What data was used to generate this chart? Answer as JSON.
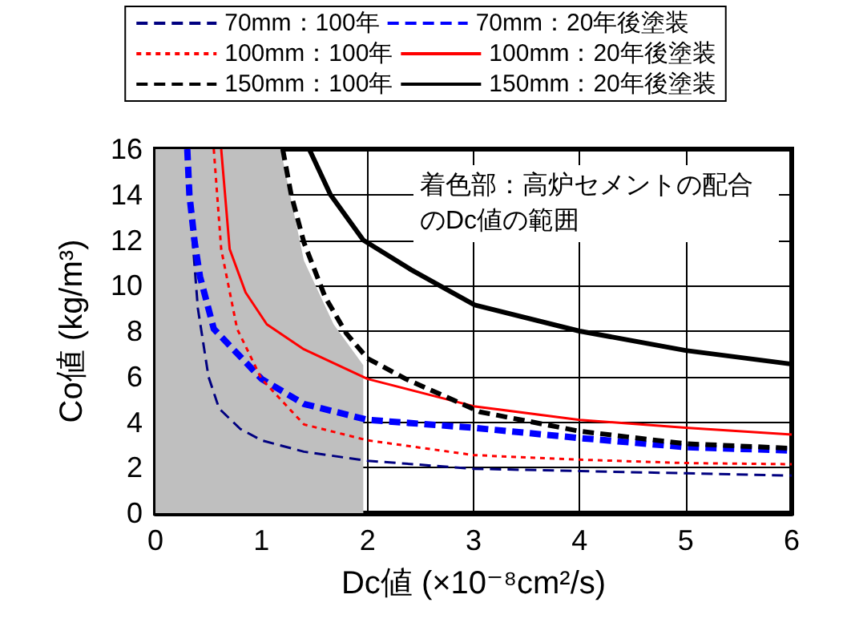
{
  "chart_data": {
    "type": "line",
    "xlabel": "Dc値 (×10⁻⁸cm²/s)",
    "ylabel": "Co値 (kg/m³)",
    "xlim": [
      0,
      6
    ],
    "xticks": [
      0,
      1,
      2,
      3,
      4,
      5,
      6
    ],
    "ylim": [
      0,
      16
    ],
    "yticks": [
      0,
      2,
      4,
      6,
      8,
      10,
      12,
      14,
      16
    ],
    "grid": true,
    "legend": "top",
    "marker": "none",
    "annotations": [
      "着色部：高炉セメントの配合のDc値の範囲"
    ],
    "series": [
      {
        "type": "area",
        "color": "#bfbfbf",
        "x": [
          0,
          1.18,
          1.4,
          1.68,
          1.96,
          1.96
        ],
        "values": [
          16,
          16,
          11.1,
          8.3,
          6.5,
          0
        ]
      },
      {
        "name": "70mm：100年",
        "color": "#000080",
        "line_style": "dashed",
        "x": [
          0.3,
          0.35,
          0.4,
          0.5,
          0.6,
          0.8,
          1.0,
          1.4,
          2,
          3,
          4,
          5,
          6
        ],
        "values": [
          16,
          12,
          9,
          6,
          4.6,
          3.7,
          3.2,
          2.7,
          2.3,
          1.95,
          1.85,
          1.75,
          1.65
        ]
      },
      {
        "name": "70mm：20年後塗装",
        "color": "#0000ff",
        "line_style": "dashed",
        "x": [
          0.3,
          0.32,
          0.37,
          0.42,
          0.55,
          1.0,
          1.4,
          2,
          3,
          4,
          5,
          6
        ],
        "values": [
          16,
          14,
          11.9,
          10.4,
          8.1,
          5.9,
          4.8,
          4.1,
          3.75,
          3.3,
          2.9,
          2.75
        ]
      },
      {
        "name": "100mm：100年",
        "color": "#ff0000",
        "line_style": "dotted",
        "x": [
          0.55,
          0.62,
          0.77,
          1.0,
          1.4,
          2,
          3,
          4,
          5,
          6
        ],
        "values": [
          16,
          11.6,
          8.1,
          5.9,
          3.9,
          3.2,
          2.55,
          2.35,
          2.2,
          2.15
        ]
      },
      {
        "name": "100mm：20年後塗装",
        "color": "#ff0000",
        "line_style": "solid",
        "x": [
          0.62,
          0.7,
          0.85,
          1.05,
          1.4,
          2,
          3,
          4,
          5,
          6
        ],
        "values": [
          16,
          11.6,
          9.7,
          8.3,
          7.2,
          5.9,
          4.7,
          4.1,
          3.75,
          3.45
        ]
      },
      {
        "name": "150mm：100年",
        "color": "#000000",
        "line_style": "dashed",
        "x": [
          1.2,
          1.28,
          1.4,
          1.6,
          1.8,
          2,
          2.36,
          3.06,
          4,
          5,
          6
        ],
        "values": [
          16,
          14,
          11.9,
          9.5,
          7.9,
          6.8,
          5.9,
          4.45,
          3.6,
          3.05,
          2.85
        ]
      },
      {
        "name": "150mm：20年後塗装",
        "color": "#000000",
        "line_style": "solid",
        "x": [
          1.45,
          1.65,
          1.96,
          2.41,
          3.01,
          4,
          5,
          6
        ],
        "values": [
          16,
          14,
          12,
          10.7,
          9.15,
          8,
          7.15,
          6.55
        ]
      }
    ]
  }
}
